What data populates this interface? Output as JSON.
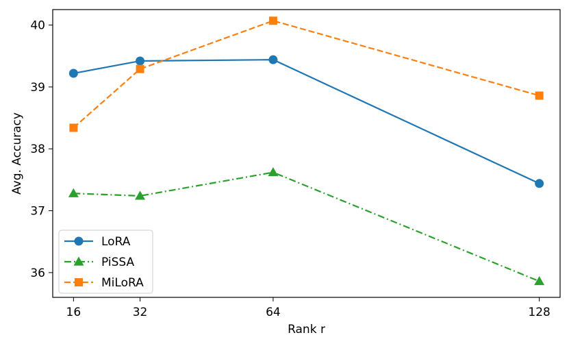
{
  "chart_data": {
    "type": "line",
    "title": "",
    "xlabel": "Rank r",
    "ylabel": "Avg. Accuracy",
    "x": [
      16,
      32,
      64,
      128
    ],
    "x_tick_labels": [
      "16",
      "32",
      "64",
      "128"
    ],
    "y_ticks": [
      36,
      37,
      38,
      39,
      40
    ],
    "y_tick_labels": [
      "36",
      "37",
      "38",
      "39",
      "40"
    ],
    "xlim": [
      11,
      133
    ],
    "ylim": [
      35.6,
      40.25
    ],
    "grid": false,
    "legend_position": "lower-left",
    "series": [
      {
        "name": "LoRA",
        "values": [
          39.22,
          39.42,
          39.44,
          37.44
        ],
        "color": "#1f77b4",
        "marker": "circle",
        "linestyle": "solid"
      },
      {
        "name": "PiSSA",
        "values": [
          37.28,
          37.24,
          37.62,
          35.86
        ],
        "color": "#2ca02c",
        "marker": "triangle",
        "linestyle": "dashdot"
      },
      {
        "name": "MiLoRA",
        "values": [
          38.34,
          39.29,
          40.07,
          38.86
        ],
        "color": "#ff7f0e",
        "marker": "square",
        "linestyle": "dashed"
      }
    ]
  }
}
